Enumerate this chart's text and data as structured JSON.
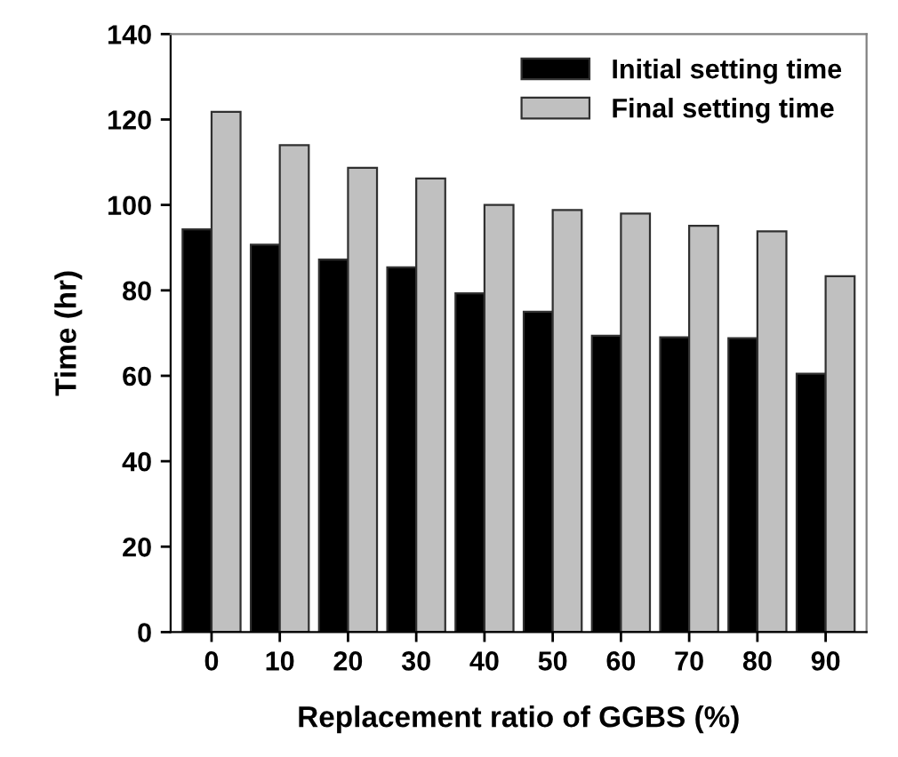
{
  "chart_data": {
    "type": "bar",
    "xlabel": "Replacement ratio of GGBS (%)",
    "ylabel": "Time (hr)",
    "categories": [
      "0",
      "10",
      "20",
      "30",
      "40",
      "50",
      "60",
      "70",
      "80",
      "90"
    ],
    "series": [
      {
        "name": "Initial setting time",
        "color": "#000000",
        "values": [
          94.3,
          90.7,
          87.2,
          85.4,
          79.3,
          75.0,
          69.4,
          69.0,
          68.8,
          60.5
        ]
      },
      {
        "name": "Final setting time",
        "color": "#c0c0c0",
        "values": [
          121.8,
          114.0,
          108.7,
          106.2,
          100.0,
          98.8,
          98.0,
          95.1,
          93.8,
          83.3
        ]
      }
    ],
    "ylim": [
      0,
      140
    ],
    "yticks": [
      0,
      20,
      40,
      60,
      80,
      100,
      120,
      140
    ],
    "grid": false,
    "legend": "top right"
  }
}
